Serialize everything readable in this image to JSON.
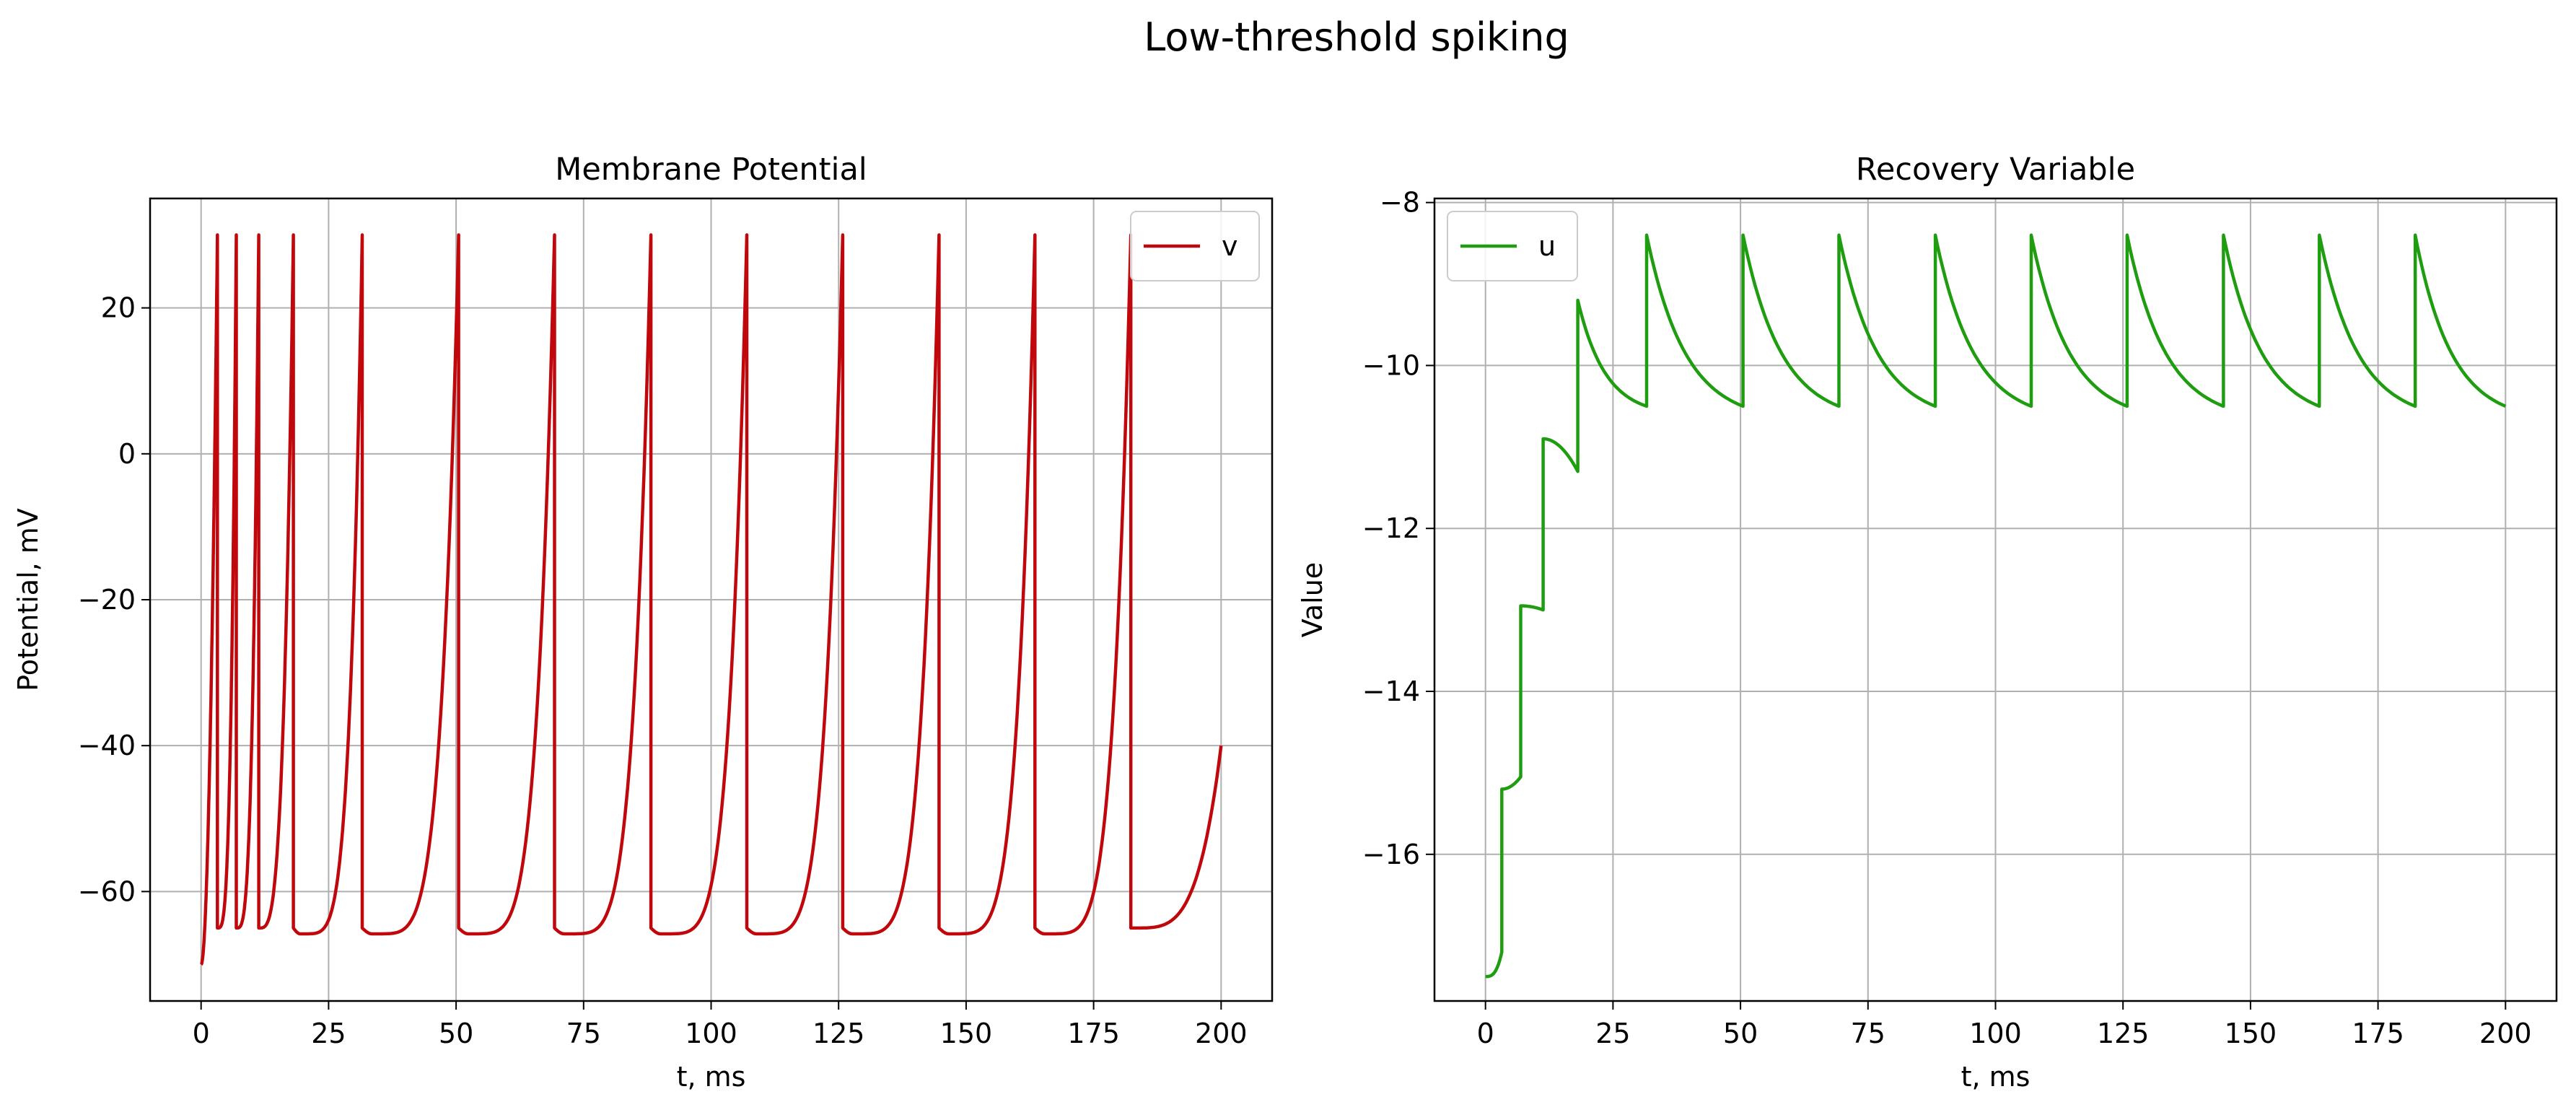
{
  "figure": {
    "suptitle": "Low-threshold spiking"
  },
  "chart_data": [
    {
      "type": "line",
      "title": "Membrane Potential",
      "xlabel": "t, ms",
      "ylabel": "Potential, mV",
      "xlim": [
        -10,
        210
      ],
      "ylim": [
        -75,
        35
      ],
      "xticks": [
        0,
        25,
        50,
        75,
        100,
        125,
        150,
        175,
        200
      ],
      "yticks": [
        -60,
        -40,
        -20,
        0,
        20
      ],
      "grid": true,
      "legend_position": "upper right",
      "series": [
        {
          "name": "v",
          "color": "#c0070b",
          "model": "spike-train",
          "v_start": -70,
          "v_peak": 30,
          "v_reset": -65,
          "v_end": -40,
          "spike_times": [
            3.2,
            6.9,
            11.3,
            18.1,
            31.6,
            50.5,
            69.3,
            88.2,
            107.0,
            125.8,
            144.7,
            163.5,
            182.3
          ],
          "x_end": 200
        }
      ]
    },
    {
      "type": "line",
      "title": "Recovery Variable",
      "xlabel": "t, ms",
      "ylabel": "Value",
      "xlim": [
        -10,
        210
      ],
      "ylim": [
        -17.8,
        -7.95
      ],
      "xticks": [
        0,
        25,
        50,
        75,
        100,
        125,
        150,
        175,
        200
      ],
      "yticks": [
        -16,
        -14,
        -12,
        -10,
        -8
      ],
      "grid": true,
      "legend_position": "upper left",
      "series": [
        {
          "name": "u",
          "color": "#1f9d10",
          "model": "recovery",
          "u_start": -17.5,
          "u_before_spikes": [
            -17.2,
            -15.05,
            -13.0,
            -11.3,
            -10.5,
            -10.5,
            -10.5,
            -10.5,
            -10.5,
            -10.5,
            -10.5,
            -10.5,
            -10.5
          ],
          "u_after_spikes": [
            -15.2,
            -12.95,
            -10.9,
            -9.2,
            -8.4,
            -8.4,
            -8.4,
            -8.4,
            -8.4,
            -8.4,
            -8.4,
            -8.4,
            -8.4
          ],
          "u_end": -10.5
        }
      ]
    }
  ]
}
